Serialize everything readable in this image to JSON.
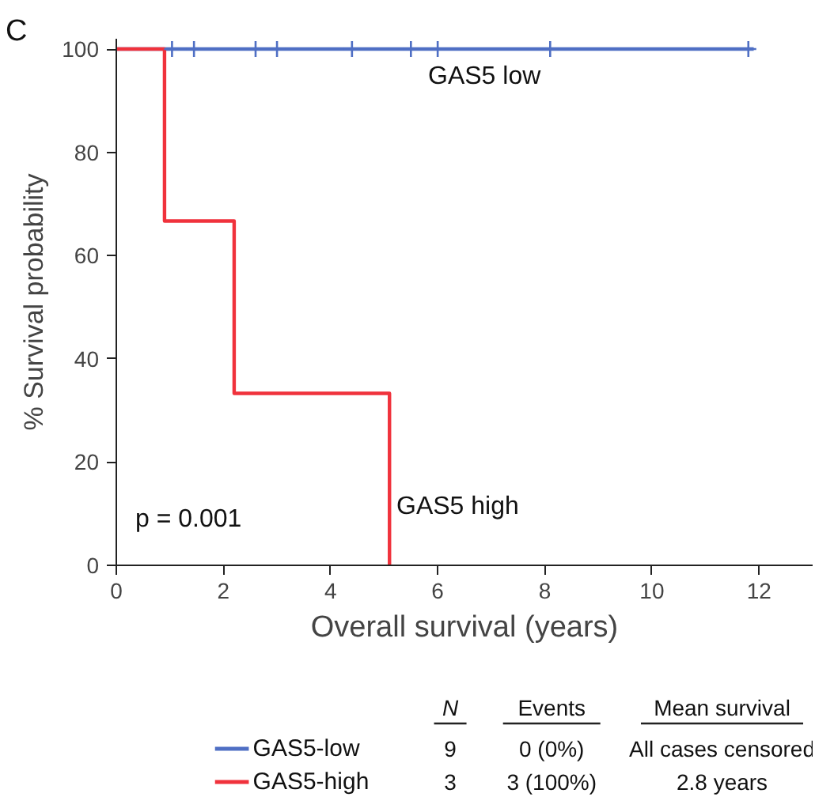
{
  "chart_data": {
    "type": "step",
    "xlabel": "Overall survival (years)",
    "ylabel": "% Survival probability",
    "series": [
      {
        "name": "GAS5-low",
        "color": "#4f6fc4",
        "x": [
          0,
          11.9
        ],
        "values": [
          100,
          100
        ]
      },
      {
        "name": "GAS5-high",
        "color": "#f0323c",
        "x": [
          0,
          0.9,
          2.2,
          5.1
        ],
        "values": [
          100,
          66.7,
          33.3,
          0
        ]
      },
      {
        "type": "scatter",
        "color": "#4f6fc4",
        "marker": "cross",
        "x": [
          1.04,
          1.45,
          2.6,
          3.0,
          4.4,
          5.5,
          6.0,
          8.1,
          11.8
        ],
        "values": [
          100,
          100,
          100,
          100,
          100,
          100,
          100,
          100,
          100
        ]
      }
    ],
    "xlim": [
      0,
      13
    ],
    "ylim": [
      0,
      102
    ],
    "xticks": [
      0,
      2,
      4,
      6,
      8,
      10,
      12
    ],
    "yticks": [
      0,
      20,
      40,
      60,
      80,
      100
    ],
    "grid": false,
    "legend": "bottom",
    "annotations": [
      "C",
      "p = 0.001",
      "GAS5 low",
      "GAS5 high",
      "N",
      "Events",
      "Mean survival",
      "9",
      "0 (0%)",
      "All cases censored",
      "3",
      "3 (100%)",
      "2.8 years"
    ]
  }
}
